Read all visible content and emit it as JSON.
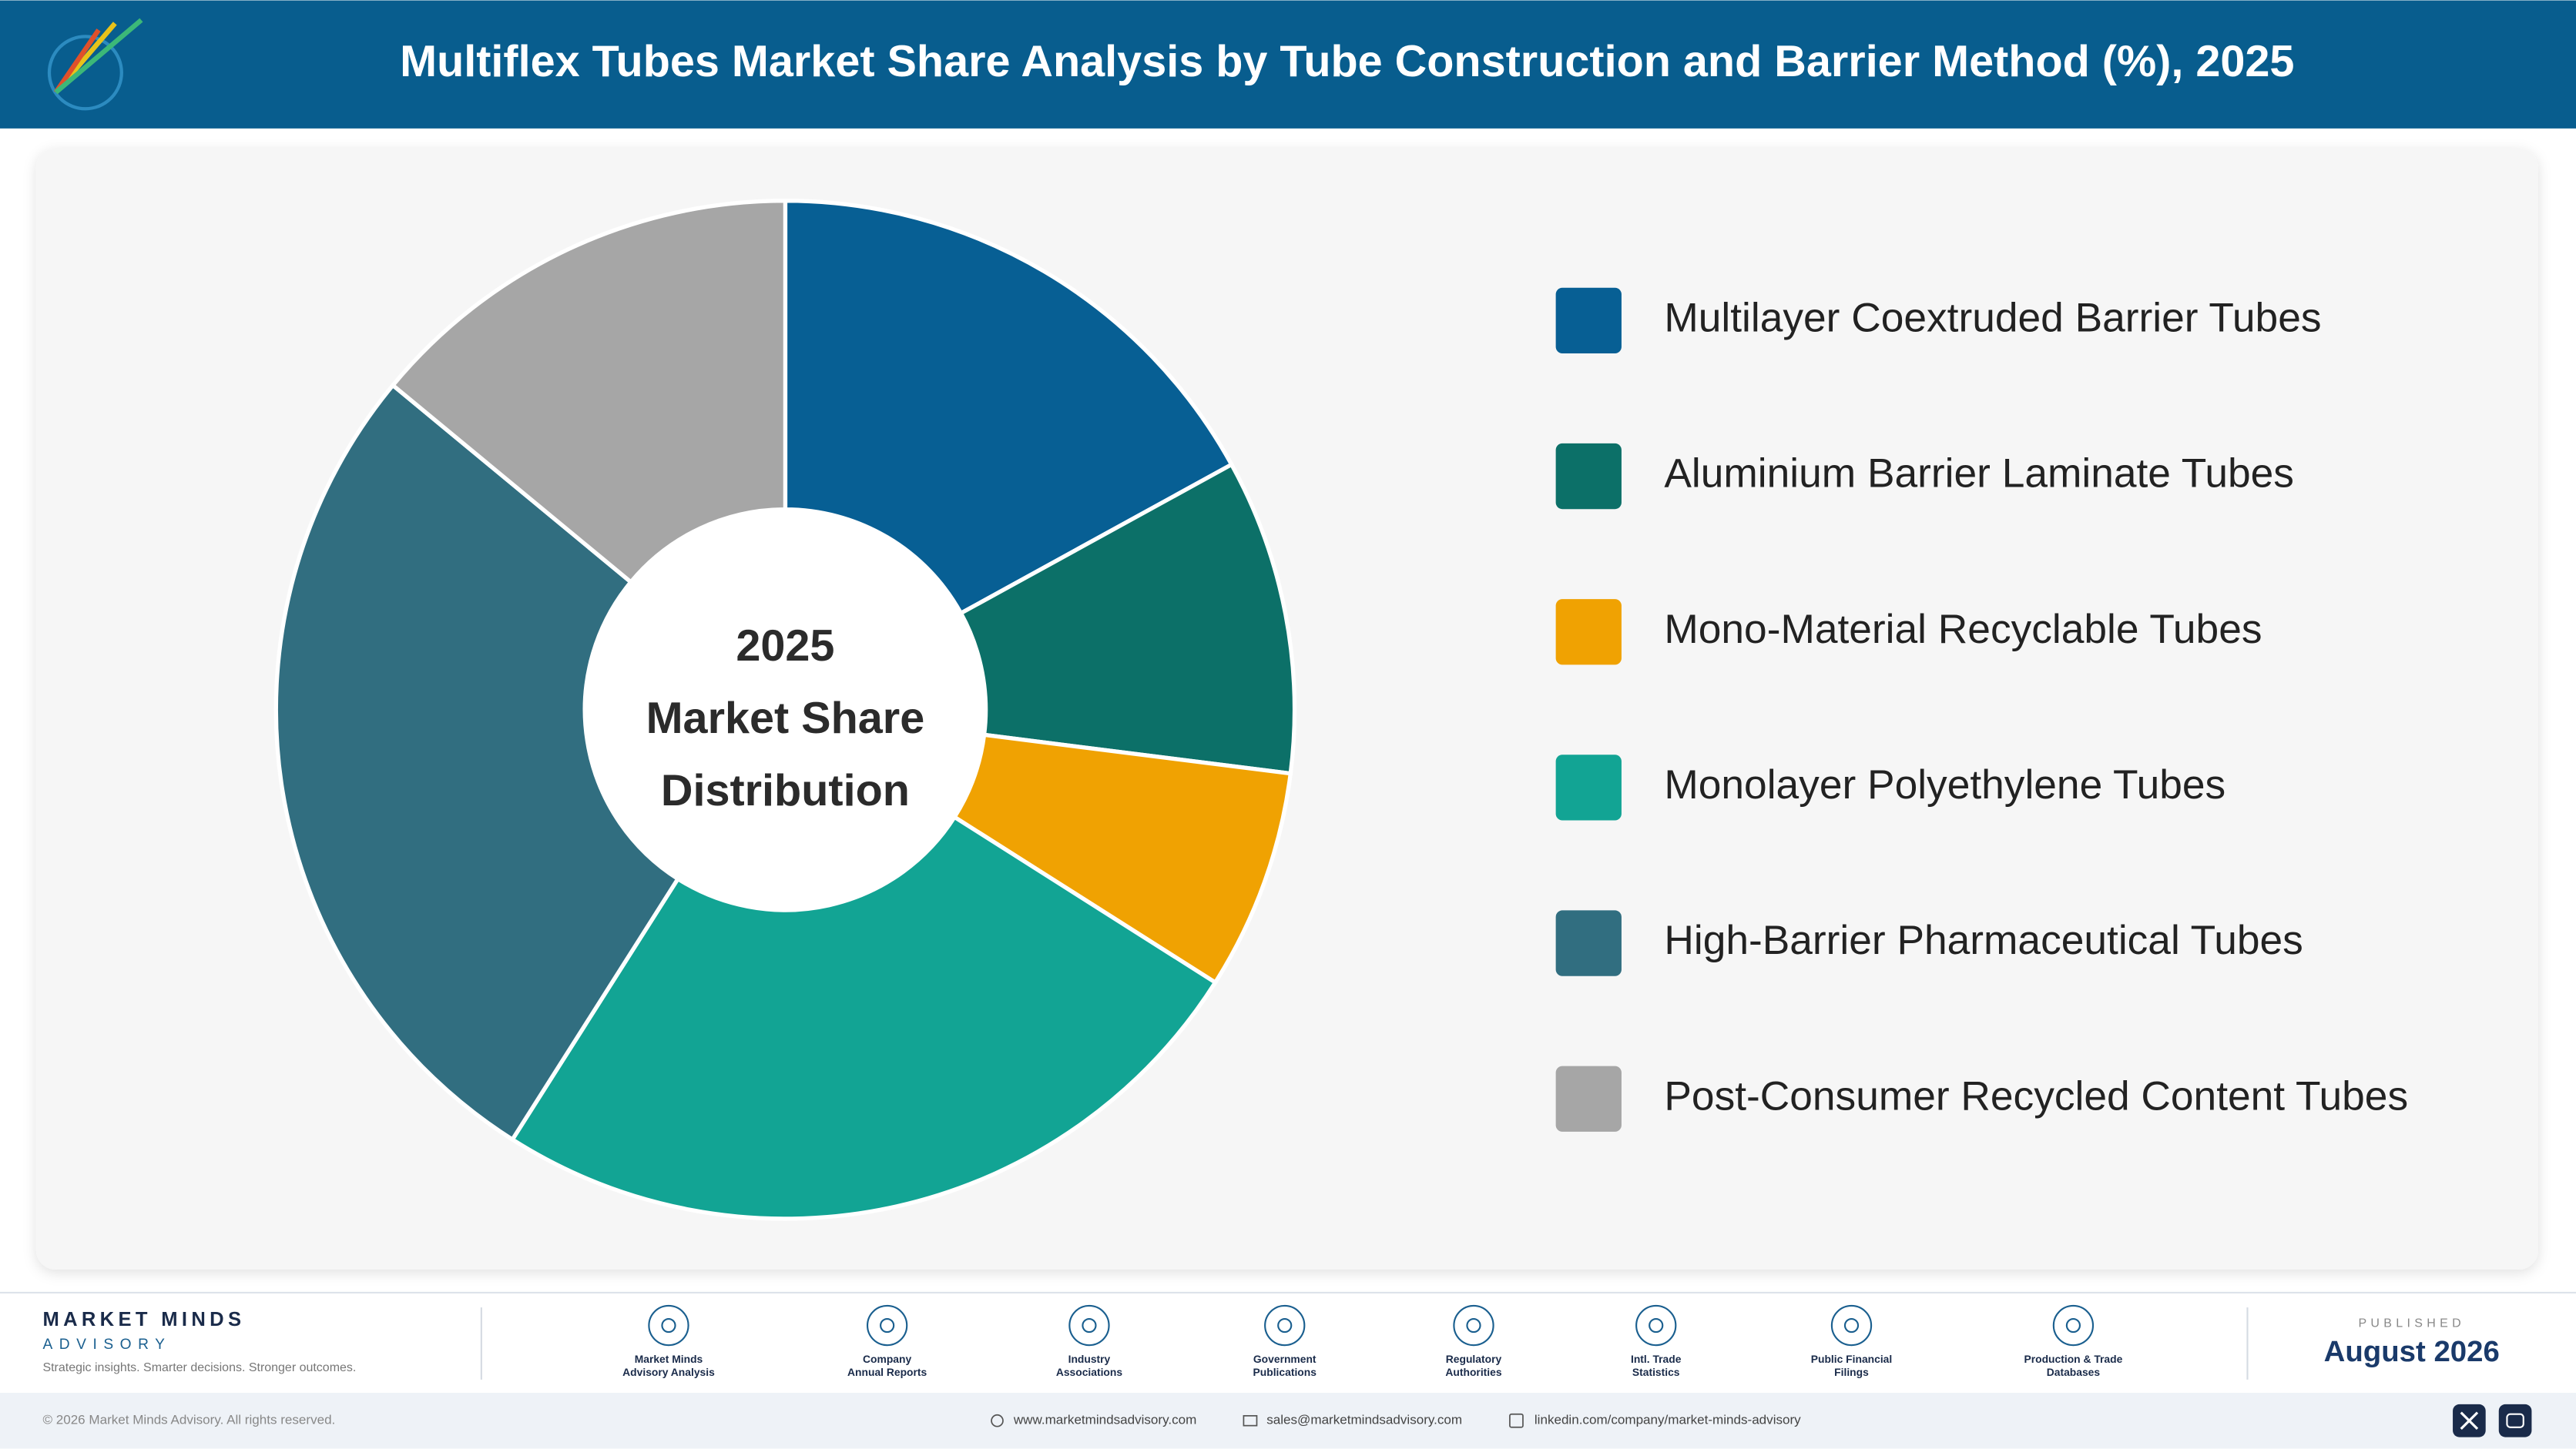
{
  "chart_data": {
    "type": "donut",
    "title": "Multiflex Tubes Market Share Analysis by Tube Construction and Barrier Method (%), 2025",
    "center_label": [
      "2025",
      "Market Share",
      "Distribution"
    ],
    "categories": [
      "Multilayer Coextruded Barrier Tubes",
      "Aluminium Barrier Laminate Tubes",
      "Mono-Material Recyclable Tubes",
      "Monolayer Polyethylene Tubes",
      "High-Barrier Pharmaceutical Tubes",
      "Post-Consumer Recycled Content Tubes"
    ],
    "values": [
      17,
      10,
      7,
      25,
      27,
      14
    ],
    "colors": [
      "#075f94",
      "#0c7068",
      "#f0a202",
      "#12a494",
      "#316e80",
      "#a6a6a6"
    ],
    "legend": "right"
  },
  "footer": {
    "brand": "MARKET MINDS",
    "brand_sub": "ADVISORY",
    "tagline": "Strategic insights. Smarter decisions. Stronger outcomes.",
    "sources": [
      [
        "Market Minds",
        "Advisory Analysis"
      ],
      [
        "Company",
        "Annual Reports"
      ],
      [
        "Industry",
        "Associations"
      ],
      [
        "Government",
        "Publications"
      ],
      [
        "Regulatory",
        "Authorities"
      ],
      [
        "Intl. Trade",
        "Statistics"
      ],
      [
        "Public Financial",
        "Filings"
      ],
      [
        "Production & Trade",
        "Databases"
      ]
    ],
    "published_label": "PUBLISHED",
    "published": "August 2026",
    "copyright": "© 2026 Market Minds Advisory. All rights reserved.",
    "website": "www.marketmindsadvisory.com",
    "email": "sales@marketmindsadvisory.com",
    "linkedin": "linkedin.com/company/market-minds-advisory"
  }
}
